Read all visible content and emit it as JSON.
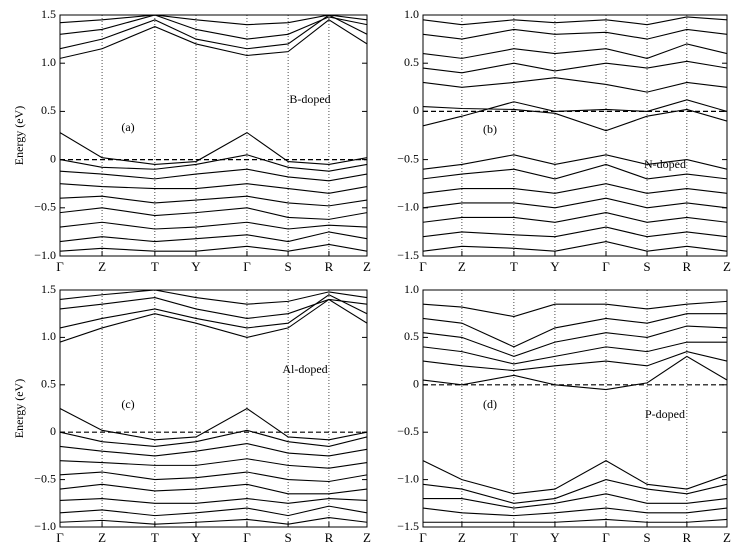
{
  "chart_data": [
    {
      "type": "line",
      "ylabel": "Energy (eV)",
      "panel_label": "(a)",
      "annotation": "B-doped",
      "x": [
        0,
        0.137,
        0.309,
        0.443,
        0.609,
        0.743,
        0.876,
        1.0
      ],
      "xlim": [
        0,
        1.0
      ],
      "xticks": [
        {
          "value": 0,
          "label": "Γ"
        },
        {
          "value": 0.137,
          "label": "Z"
        },
        {
          "value": 0.309,
          "label": "T"
        },
        {
          "value": 0.443,
          "label": "Y"
        },
        {
          "value": 0.609,
          "label": "Γ"
        },
        {
          "value": 0.743,
          "label": "S"
        },
        {
          "value": 0.876,
          "label": "R"
        },
        {
          "value": 1.0,
          "label": "Z"
        }
      ],
      "ylim": [
        -1.0,
        1.5
      ],
      "yticks": [
        {
          "value": -1.0,
          "label": "−1.0"
        },
        {
          "value": -0.5,
          "label": "−0.5"
        },
        0,
        {
          "value": 0.5,
          "label": "0.5"
        },
        {
          "value": 1.0,
          "label": "1.0"
        },
        {
          "value": 1.5,
          "label": "1.5"
        }
      ],
      "fermi_level": 0,
      "color": "#000000",
      "series": [
        {
          "values": [
            1.05,
            1.15,
            1.38,
            1.2,
            1.08,
            1.12,
            1.45,
            1.2
          ]
        },
        {
          "values": [
            1.15,
            1.25,
            1.45,
            1.25,
            1.15,
            1.2,
            1.5,
            1.3
          ]
        },
        {
          "values": [
            1.3,
            1.35,
            1.5,
            1.35,
            1.25,
            1.3,
            1.48,
            1.4
          ]
        },
        {
          "values": [
            1.42,
            1.45,
            1.5,
            1.45,
            1.4,
            1.42,
            1.5,
            1.45
          ]
        },
        {
          "values": [
            0.28,
            0.02,
            -0.05,
            -0.02,
            0.28,
            -0.02,
            -0.05,
            0.02
          ]
        },
        {
          "values": [
            0.0,
            -0.08,
            -0.1,
            -0.05,
            0.05,
            -0.08,
            -0.12,
            -0.05
          ]
        },
        {
          "values": [
            -0.12,
            -0.15,
            -0.2,
            -0.15,
            -0.1,
            -0.18,
            -0.22,
            -0.15
          ]
        },
        {
          "values": [
            -0.25,
            -0.28,
            -0.3,
            -0.3,
            -0.25,
            -0.3,
            -0.35,
            -0.28
          ]
        },
        {
          "values": [
            -0.4,
            -0.38,
            -0.45,
            -0.42,
            -0.38,
            -0.45,
            -0.48,
            -0.42
          ]
        },
        {
          "values": [
            -0.55,
            -0.5,
            -0.58,
            -0.55,
            -0.5,
            -0.6,
            -0.62,
            -0.55
          ]
        },
        {
          "values": [
            -0.7,
            -0.65,
            -0.72,
            -0.7,
            -0.65,
            -0.72,
            -0.68,
            -0.7
          ]
        },
        {
          "values": [
            -0.85,
            -0.8,
            -0.85,
            -0.82,
            -0.78,
            -0.85,
            -0.75,
            -0.82
          ]
        },
        {
          "values": [
            -0.95,
            -0.92,
            -0.95,
            -0.95,
            -0.9,
            -0.95,
            -0.88,
            -0.95
          ]
        }
      ]
    },
    {
      "type": "line",
      "panel_label": "(b)",
      "annotation": "N-doped",
      "x": [
        0,
        0.128,
        0.299,
        0.434,
        0.602,
        0.737,
        0.868,
        1.0
      ],
      "xlim": [
        0,
        1.0
      ],
      "xticks": [
        {
          "value": 0,
          "label": "Γ"
        },
        {
          "value": 0.128,
          "label": "Z"
        },
        {
          "value": 0.299,
          "label": "T"
        },
        {
          "value": 0.434,
          "label": "Y"
        },
        {
          "value": 0.602,
          "label": "Γ"
        },
        {
          "value": 0.737,
          "label": "S"
        },
        {
          "value": 0.868,
          "label": "R"
        },
        {
          "value": 1.0,
          "label": "Z"
        }
      ],
      "ylim": [
        -1.5,
        1.0
      ],
      "yticks": [
        {
          "value": -1.5,
          "label": "−1.5"
        },
        {
          "value": -1.0,
          "label": "−1.0"
        },
        {
          "value": -0.5,
          "label": "−0.5"
        },
        0,
        {
          "value": 0.5,
          "label": "0.5"
        },
        {
          "value": 1.0,
          "label": "1.0"
        }
      ],
      "fermi_level": 0,
      "color": "#000000",
      "series": [
        {
          "values": [
            0.95,
            0.9,
            0.95,
            0.92,
            0.95,
            0.9,
            0.98,
            0.95
          ]
        },
        {
          "values": [
            0.8,
            0.75,
            0.85,
            0.8,
            0.82,
            0.75,
            0.85,
            0.8
          ]
        },
        {
          "values": [
            0.6,
            0.55,
            0.65,
            0.6,
            0.65,
            0.55,
            0.7,
            0.6
          ]
        },
        {
          "values": [
            0.45,
            0.4,
            0.5,
            0.42,
            0.5,
            0.45,
            0.52,
            0.45
          ]
        },
        {
          "values": [
            0.3,
            0.25,
            0.3,
            0.35,
            0.28,
            0.2,
            0.3,
            0.25
          ]
        },
        {
          "values": [
            -0.15,
            -0.05,
            0.1,
            0.0,
            0.02,
            0.0,
            0.12,
            0.0
          ]
        },
        {
          "values": [
            0.05,
            0.03,
            0.02,
            -0.02,
            -0.2,
            -0.05,
            0.02,
            -0.1
          ]
        },
        {
          "values": [
            -0.6,
            -0.55,
            -0.45,
            -0.55,
            -0.45,
            -0.55,
            -0.5,
            -0.6
          ]
        },
        {
          "values": [
            -0.7,
            -0.65,
            -0.6,
            -0.7,
            -0.55,
            -0.7,
            -0.65,
            -0.7
          ]
        },
        {
          "values": [
            -0.85,
            -0.8,
            -0.8,
            -0.85,
            -0.75,
            -0.85,
            -0.8,
            -0.85
          ]
        },
        {
          "values": [
            -1.0,
            -0.95,
            -0.95,
            -1.0,
            -0.9,
            -1.0,
            -0.95,
            -1.0
          ]
        },
        {
          "values": [
            -1.15,
            -1.1,
            -1.1,
            -1.15,
            -1.05,
            -1.15,
            -1.1,
            -1.15
          ]
        },
        {
          "values": [
            -1.3,
            -1.25,
            -1.28,
            -1.3,
            -1.2,
            -1.3,
            -1.25,
            -1.3
          ]
        },
        {
          "values": [
            -1.45,
            -1.4,
            -1.42,
            -1.45,
            -1.35,
            -1.45,
            -1.4,
            -1.45
          ]
        }
      ]
    },
    {
      "type": "line",
      "ylabel": "Energy (eV)",
      "panel_label": "(c)",
      "annotation": "Al-doped",
      "x": [
        0,
        0.137,
        0.309,
        0.443,
        0.609,
        0.743,
        0.876,
        1.0
      ],
      "xlim": [
        0,
        1.0
      ],
      "xticks": [
        {
          "value": 0,
          "label": "Γ"
        },
        {
          "value": 0.137,
          "label": "Z"
        },
        {
          "value": 0.309,
          "label": "T"
        },
        {
          "value": 0.443,
          "label": "Y"
        },
        {
          "value": 0.609,
          "label": "Γ"
        },
        {
          "value": 0.743,
          "label": "S"
        },
        {
          "value": 0.876,
          "label": "R"
        },
        {
          "value": 1.0,
          "label": "Z"
        }
      ],
      "ylim": [
        -1.0,
        1.5
      ],
      "yticks": [
        {
          "value": -1.0,
          "label": "−1.0"
        },
        {
          "value": -0.5,
          "label": "−0.5"
        },
        0,
        {
          "value": 0.5,
          "label": "0.5"
        },
        {
          "value": 1.0,
          "label": "1.0"
        },
        {
          "value": 1.5,
          "label": "1.5"
        }
      ],
      "fermi_level": 0,
      "color": "#000000",
      "series": [
        {
          "values": [
            0.95,
            1.1,
            1.25,
            1.15,
            1.0,
            1.1,
            1.4,
            1.15
          ]
        },
        {
          "values": [
            1.1,
            1.2,
            1.3,
            1.2,
            1.1,
            1.15,
            1.45,
            1.25
          ]
        },
        {
          "values": [
            1.3,
            1.35,
            1.42,
            1.3,
            1.2,
            1.25,
            1.4,
            1.35
          ]
        },
        {
          "values": [
            1.4,
            1.45,
            1.5,
            1.42,
            1.35,
            1.38,
            1.48,
            1.42
          ]
        },
        {
          "values": [
            0.25,
            0.02,
            -0.08,
            -0.05,
            0.25,
            -0.05,
            -0.08,
            0.0
          ]
        },
        {
          "values": [
            0.0,
            -0.1,
            -0.15,
            -0.1,
            0.02,
            -0.1,
            -0.15,
            -0.05
          ]
        },
        {
          "values": [
            -0.15,
            -0.2,
            -0.25,
            -0.2,
            -0.12,
            -0.22,
            -0.25,
            -0.18
          ]
        },
        {
          "values": [
            -0.3,
            -0.32,
            -0.35,
            -0.35,
            -0.28,
            -0.35,
            -0.38,
            -0.32
          ]
        },
        {
          "values": [
            -0.45,
            -0.42,
            -0.5,
            -0.48,
            -0.42,
            -0.5,
            -0.52,
            -0.45
          ]
        },
        {
          "values": [
            -0.6,
            -0.55,
            -0.62,
            -0.6,
            -0.55,
            -0.65,
            -0.65,
            -0.6
          ]
        },
        {
          "values": [
            -0.72,
            -0.7,
            -0.75,
            -0.75,
            -0.7,
            -0.75,
            -0.7,
            -0.72
          ]
        },
        {
          "values": [
            -0.85,
            -0.82,
            -0.88,
            -0.85,
            -0.8,
            -0.88,
            -0.78,
            -0.85
          ]
        },
        {
          "values": [
            -0.95,
            -0.93,
            -0.97,
            -0.95,
            -0.92,
            -0.97,
            -0.9,
            -0.95
          ]
        }
      ]
    },
    {
      "type": "line",
      "panel_label": "(d)",
      "annotation": "P-doped",
      "x": [
        0,
        0.128,
        0.299,
        0.434,
        0.602,
        0.737,
        0.868,
        1.0
      ],
      "xlim": [
        0,
        1.0
      ],
      "xticks": [
        {
          "value": 0,
          "label": "Γ"
        },
        {
          "value": 0.128,
          "label": "Z"
        },
        {
          "value": 0.299,
          "label": "T"
        },
        {
          "value": 0.434,
          "label": "Y"
        },
        {
          "value": 0.602,
          "label": "Γ"
        },
        {
          "value": 0.737,
          "label": "S"
        },
        {
          "value": 0.868,
          "label": "R"
        },
        {
          "value": 1.0,
          "label": "Z"
        }
      ],
      "ylim": [
        -1.5,
        1.0
      ],
      "yticks": [
        {
          "value": -1.5,
          "label": "−1.5"
        },
        {
          "value": -1.0,
          "label": "−1.0"
        },
        {
          "value": -0.5,
          "label": "−0.5"
        },
        0,
        {
          "value": 0.5,
          "label": "0.5"
        },
        {
          "value": 1.0,
          "label": "1.0"
        }
      ],
      "fermi_level": 0,
      "color": "#000000",
      "series": [
        {
          "values": [
            0.85,
            0.82,
            0.72,
            0.85,
            0.85,
            0.8,
            0.85,
            0.88
          ]
        },
        {
          "values": [
            0.7,
            0.65,
            0.4,
            0.6,
            0.7,
            0.65,
            0.75,
            0.75
          ]
        },
        {
          "values": [
            0.55,
            0.5,
            0.3,
            0.45,
            0.55,
            0.5,
            0.62,
            0.6
          ]
        },
        {
          "values": [
            0.4,
            0.35,
            0.22,
            0.3,
            0.4,
            0.35,
            0.45,
            0.45
          ]
        },
        {
          "values": [
            0.25,
            0.2,
            0.15,
            0.2,
            0.25,
            0.2,
            0.35,
            0.25
          ]
        },
        {
          "values": [
            0.05,
            0.0,
            0.1,
            0.0,
            -0.05,
            0.02,
            0.3,
            0.05
          ]
        },
        {
          "values": [
            -0.8,
            -1.0,
            -1.15,
            -1.1,
            -0.8,
            -1.05,
            -1.1,
            -0.95
          ]
        },
        {
          "values": [
            -1.05,
            -1.1,
            -1.25,
            -1.2,
            -1.0,
            -1.1,
            -1.15,
            -1.05
          ]
        },
        {
          "values": [
            -1.2,
            -1.2,
            -1.3,
            -1.25,
            -1.15,
            -1.25,
            -1.25,
            -1.2
          ]
        },
        {
          "values": [
            -1.3,
            -1.35,
            -1.38,
            -1.35,
            -1.3,
            -1.35,
            -1.35,
            -1.3
          ]
        },
        {
          "values": [
            -1.45,
            -1.45,
            -1.45,
            -1.45,
            -1.42,
            -1.45,
            -1.45,
            -1.42
          ]
        }
      ]
    }
  ]
}
